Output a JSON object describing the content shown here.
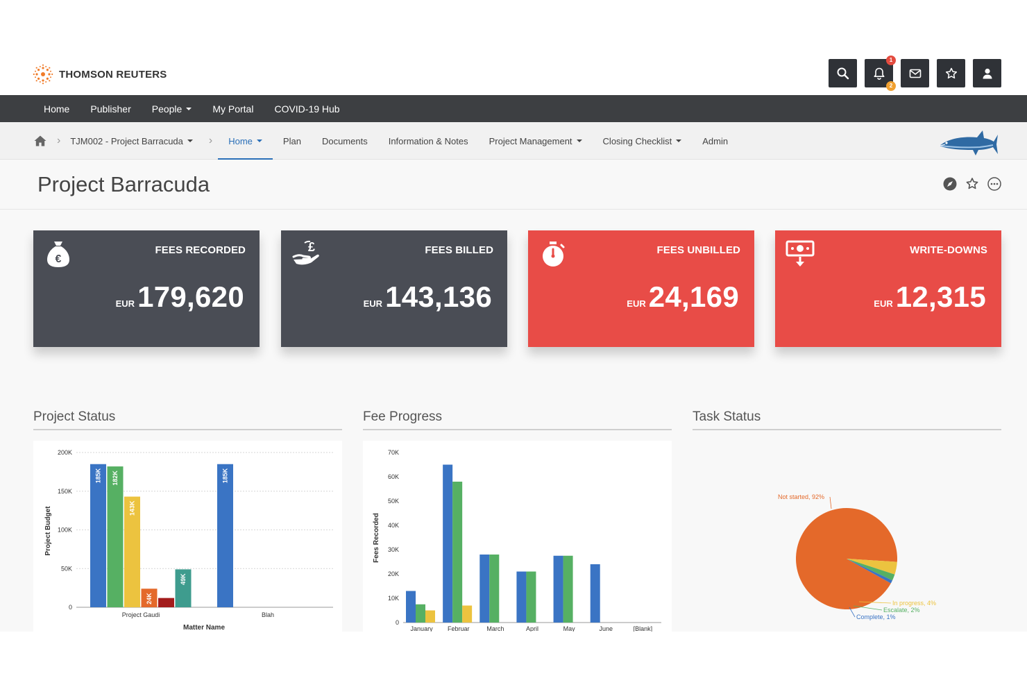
{
  "header": {
    "brand": "THOMSON REUTERS",
    "notifications_count": "1",
    "alerts_count": "2",
    "icons": [
      "search-icon",
      "bell-icon",
      "mail-icon",
      "star-icon",
      "user-icon"
    ]
  },
  "main_nav": {
    "items": [
      "Home",
      "Publisher",
      "People",
      "My Portal",
      "COVID-19 Hub"
    ]
  },
  "sub_nav": {
    "project": "TJM002 - Project Barracuda",
    "items": [
      "Home",
      "Plan",
      "Documents",
      "Information & Notes",
      "Project Management",
      "Closing Checklist",
      "Admin"
    ],
    "active": "Home"
  },
  "page": {
    "title": "Project Barracuda"
  },
  "kpis": [
    {
      "label": "FEES RECORDED",
      "currency": "EUR",
      "value": "179,620",
      "color": "#4a4d55"
    },
    {
      "label": "FEES BILLED",
      "currency": "EUR",
      "value": "143,136",
      "color": "#4a4d55"
    },
    {
      "label": "FEES UNBILLED",
      "currency": "EUR",
      "value": "24,169",
      "color": "#e84c47"
    },
    {
      "label": "WRITE-DOWNS",
      "currency": "EUR",
      "value": "12,315",
      "color": "#e84c47"
    }
  ],
  "panels": {
    "project_status": "Project Status",
    "fee_progress": "Fee Progress",
    "task_status": "Task Status"
  },
  "chart_data": [
    {
      "type": "bar",
      "title": "Project Status",
      "xlabel": "Matter Name",
      "ylabel": "Project Budget",
      "ylim": [
        0,
        200000
      ],
      "yticks": [
        "0",
        "50K",
        "100K",
        "150K",
        "200K"
      ],
      "categories": [
        "Project Gaudi",
        "Blah"
      ],
      "series": [
        {
          "color": "#3a74c4",
          "values": [
            185000,
            185000
          ],
          "labels": [
            "185K",
            "185K"
          ]
        },
        {
          "color": "#56b063",
          "values": [
            182000,
            null
          ],
          "labels": [
            "182K",
            ""
          ]
        },
        {
          "color": "#ecc33f",
          "values": [
            143000,
            null
          ],
          "labels": [
            "143K",
            ""
          ]
        },
        {
          "color": "#e4692a",
          "values": [
            24000,
            null
          ],
          "labels": [
            "24K",
            ""
          ]
        },
        {
          "color": "#a31c1c",
          "values": [
            12000,
            null
          ],
          "labels": [
            "",
            ""
          ]
        },
        {
          "color": "#3e9c8e",
          "values": [
            49000,
            null
          ],
          "labels": [
            "49K",
            ""
          ]
        }
      ],
      "grid": true
    },
    {
      "type": "bar",
      "title": "Fee Progress",
      "ylabel": "Fees Recorded",
      "ylim": [
        0,
        70000
      ],
      "yticks": [
        "0",
        "10K",
        "20K",
        "30K",
        "40K",
        "50K",
        "60K",
        "70K"
      ],
      "categories": [
        "January",
        "Februar",
        "March",
        "April",
        "May",
        "June",
        "[Blank]"
      ],
      "series": [
        {
          "color": "#3a74c4",
          "values": [
            13000,
            65000,
            28000,
            21000,
            27500,
            24000,
            null
          ]
        },
        {
          "color": "#56b063",
          "values": [
            7500,
            58000,
            28000,
            21000,
            27500,
            null,
            null
          ]
        },
        {
          "color": "#ecc33f",
          "values": [
            5000,
            7000,
            null,
            null,
            null,
            null,
            null
          ]
        }
      ],
      "grid": true
    },
    {
      "type": "pie",
      "title": "Task Status",
      "slices": [
        {
          "label": "Not started, 92%",
          "value": 92,
          "color": "#e4692a"
        },
        {
          "label": "In progress, 4%",
          "value": 4,
          "color": "#ecc33f"
        },
        {
          "label": "Escalate, 2%",
          "value": 2,
          "color": "#56b063"
        },
        {
          "label": "Complete, 1%",
          "value": 1,
          "color": "#3a74c4"
        }
      ]
    }
  ]
}
